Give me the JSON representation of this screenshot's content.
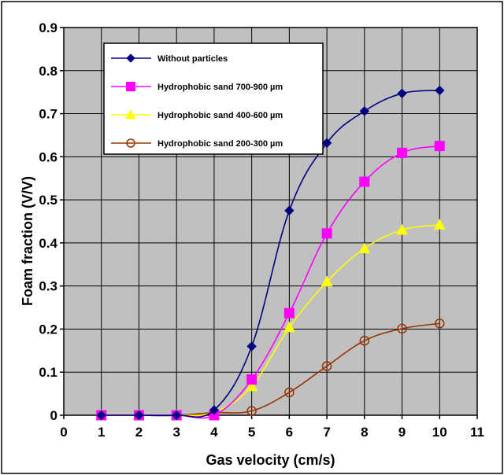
{
  "chart_data": {
    "type": "line",
    "title": "",
    "xlabel": "Gas velocity (cm/s)",
    "ylabel": "Foam fraction (V/V)",
    "xlim": [
      0,
      11
    ],
    "ylim": [
      0,
      0.9
    ],
    "x_ticks": [
      "0",
      "1",
      "2",
      "3",
      "4",
      "5",
      "6",
      "7",
      "8",
      "9",
      "10",
      "11"
    ],
    "y_ticks": [
      "0",
      "0.1",
      "0.2",
      "0.3",
      "0.4",
      "0.5",
      "0.6",
      "0.7",
      "0.8",
      "0.9"
    ],
    "grid": true,
    "plot_background": "#c0c0c0",
    "legend_position": "top-left",
    "x": [
      1,
      2,
      3,
      4,
      5,
      6,
      7,
      8,
      9,
      10
    ],
    "series": [
      {
        "name": "Without particles",
        "color": "#000080",
        "marker": "diamond",
        "values": [
          0,
          0,
          0,
          0.012,
          0.16,
          0.475,
          0.632,
          0.706,
          0.747,
          0.754
        ]
      },
      {
        "name": "Hydrophobic sand 700-900 µm",
        "color": "#ff00ff",
        "marker": "square",
        "values": [
          0,
          0,
          0,
          0,
          0.083,
          0.237,
          0.422,
          0.542,
          0.609,
          0.625
        ]
      },
      {
        "name": "Hydrophobic sand 400-600 µm",
        "color": "#ffff00",
        "marker": "triangle",
        "values": [
          0,
          0,
          0,
          0.007,
          0.067,
          0.204,
          0.31,
          0.387,
          0.43,
          0.442
        ]
      },
      {
        "name": "Hydrophobic sand 200-300 µm",
        "color": "#993300",
        "marker": "open-circle",
        "values": [
          0,
          0,
          0,
          0.006,
          0.01,
          0.053,
          0.114,
          0.173,
          0.201,
          0.213
        ]
      }
    ]
  }
}
